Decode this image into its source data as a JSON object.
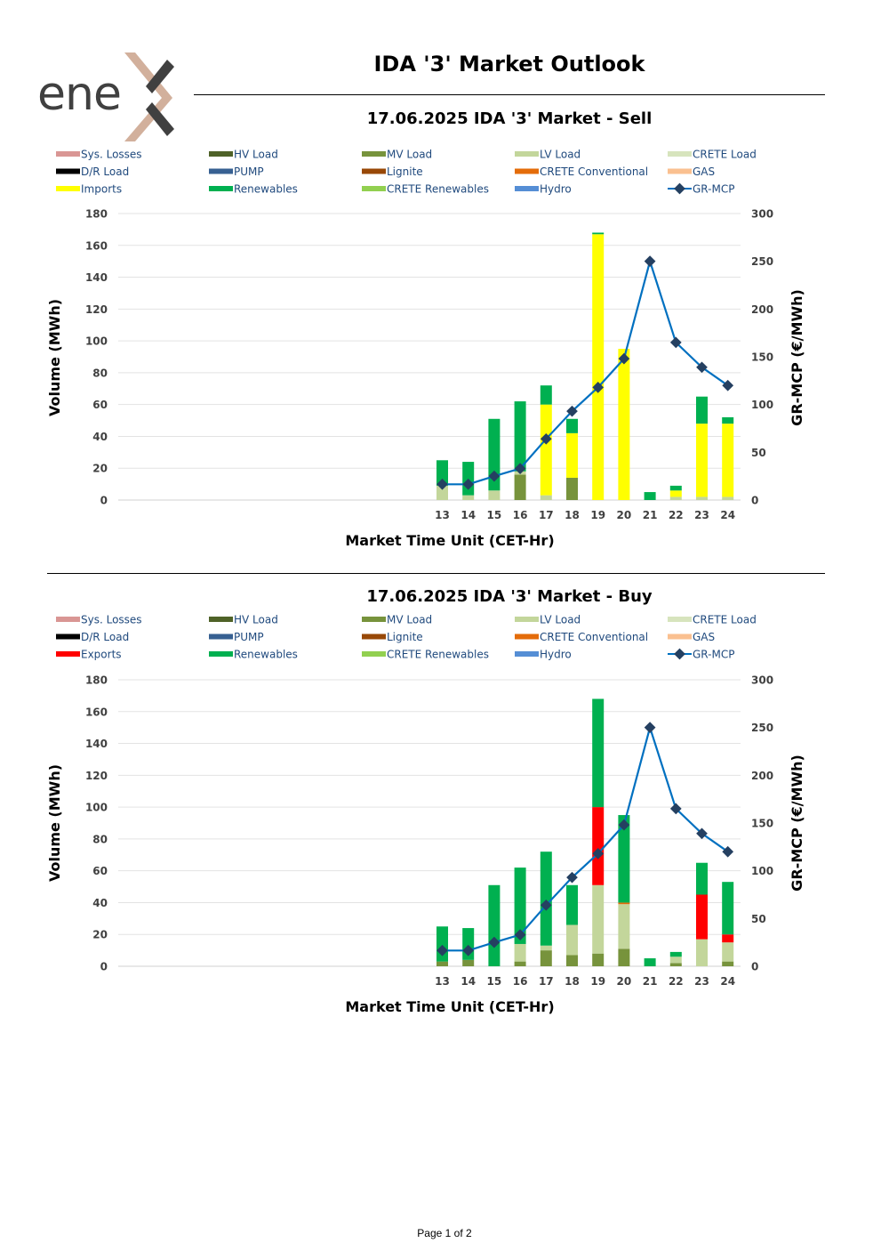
{
  "page": {
    "title": "IDA '3' Market Outlook",
    "footer": "Page 1 of 2"
  },
  "colors": {
    "Sys. Losses": "#d99694",
    "HV Load": "#4f6228",
    "MV Load": "#77933c",
    "LV Load": "#c3d69b",
    "CRETE Load": "#d7e4bd",
    "D/R Load": "#000000",
    "PUMP": "#376092",
    "Lignite": "#984807",
    "CRETE Conventional": "#e46c0a",
    "GAS": "#fac090",
    "Imports": "#ffff00",
    "Exports": "#ff0000",
    "Renewables": "#00b050",
    "CRETE Renewables": "#92d050",
    "Hydro": "#558ed5",
    "GR-MCP": "#0070c0",
    "GR-MCP-marker": "#254061",
    "legend_text": "#1f497d"
  },
  "chart_data": [
    {
      "type": "bar",
      "stacked": true,
      "title": "17.06.2025  IDA '3' Market - Sell",
      "xlabel": "Market Time Unit (CET-Hr)",
      "ylabel": "Volume (MWh)",
      "y2label": "GR-MCP (€/MWh)",
      "categories": [
        "13",
        "14",
        "15",
        "16",
        "17",
        "18",
        "19",
        "20",
        "21",
        "22",
        "23",
        "24"
      ],
      "ylim": [
        0,
        180
      ],
      "y2lim": [
        0,
        300
      ],
      "yticks": [
        "0",
        "20",
        "40",
        "60",
        "80",
        "100",
        "120",
        "140",
        "160",
        "180"
      ],
      "y2ticks": [
        "0",
        "50",
        "100",
        "150",
        "200",
        "250",
        "300"
      ],
      "legend": [
        "Sys. Losses",
        "HV Load",
        "MV Load",
        "LV Load",
        "CRETE Load",
        "D/R Load",
        "PUMP",
        "Lignite",
        "CRETE Conventional",
        "GAS",
        "Imports",
        "Renewables",
        "CRETE Renewables",
        "Hydro",
        "GR-MCP"
      ],
      "series": [
        {
          "name": "MV Load",
          "values": [
            0,
            0,
            0,
            16,
            0,
            14,
            0,
            0,
            0,
            0,
            0,
            0
          ]
        },
        {
          "name": "LV Load",
          "values": [
            9,
            3,
            6,
            2,
            3,
            0,
            0,
            0,
            0,
            2,
            2,
            2
          ]
        },
        {
          "name": "Imports",
          "values": [
            0,
            0,
            0,
            0,
            57,
            28,
            167,
            95,
            0,
            4,
            46,
            46
          ]
        },
        {
          "name": "Renewables",
          "values": [
            16,
            21,
            45,
            44,
            12,
            9,
            1,
            0,
            5,
            3,
            17,
            4
          ]
        }
      ],
      "line": {
        "name": "GR-MCP",
        "values": [
          16.5,
          16.5,
          25,
          33,
          64,
          93,
          118,
          148,
          250,
          165,
          139,
          120
        ]
      }
    },
    {
      "type": "bar",
      "stacked": true,
      "title": "17.06.2025  IDA '3' Market - Buy",
      "xlabel": "Market Time Unit (CET-Hr)",
      "ylabel": "Volume (MWh)",
      "y2label": "GR-MCP (€/MWh)",
      "categories": [
        "13",
        "14",
        "15",
        "16",
        "17",
        "18",
        "19",
        "20",
        "21",
        "22",
        "23",
        "24"
      ],
      "ylim": [
        0,
        180
      ],
      "y2lim": [
        0,
        300
      ],
      "yticks": [
        "0",
        "20",
        "40",
        "60",
        "80",
        "100",
        "120",
        "140",
        "160",
        "180"
      ],
      "y2ticks": [
        "0",
        "50",
        "100",
        "150",
        "200",
        "250",
        "300"
      ],
      "legend": [
        "Sys. Losses",
        "HV Load",
        "MV Load",
        "LV Load",
        "CRETE Load",
        "D/R Load",
        "PUMP",
        "Lignite",
        "CRETE Conventional",
        "GAS",
        "Exports",
        "Renewables",
        "CRETE Renewables",
        "Hydro",
        "GR-MCP"
      ],
      "series": [
        {
          "name": "MV Load",
          "values": [
            3,
            4,
            0,
            3,
            10,
            7,
            8,
            11,
            0,
            2,
            0,
            3
          ]
        },
        {
          "name": "LV Load",
          "values": [
            0,
            0,
            0,
            11,
            3,
            19,
            43,
            28,
            0,
            4,
            17,
            12
          ]
        },
        {
          "name": "CRETE Conventional",
          "values": [
            0,
            0,
            0,
            0,
            0,
            0,
            0,
            1,
            0,
            0,
            0,
            0
          ]
        },
        {
          "name": "Exports",
          "values": [
            0,
            0,
            0,
            0,
            0,
            0,
            49,
            0,
            0,
            0,
            28,
            5
          ]
        },
        {
          "name": "Renewables",
          "values": [
            22,
            20,
            51,
            48,
            59,
            25,
            68,
            55,
            5,
            3,
            20,
            33
          ]
        }
      ],
      "line": {
        "name": "GR-MCP",
        "values": [
          16.5,
          16.5,
          25,
          33,
          64,
          93,
          118,
          148,
          250,
          165,
          139,
          120
        ]
      }
    }
  ]
}
